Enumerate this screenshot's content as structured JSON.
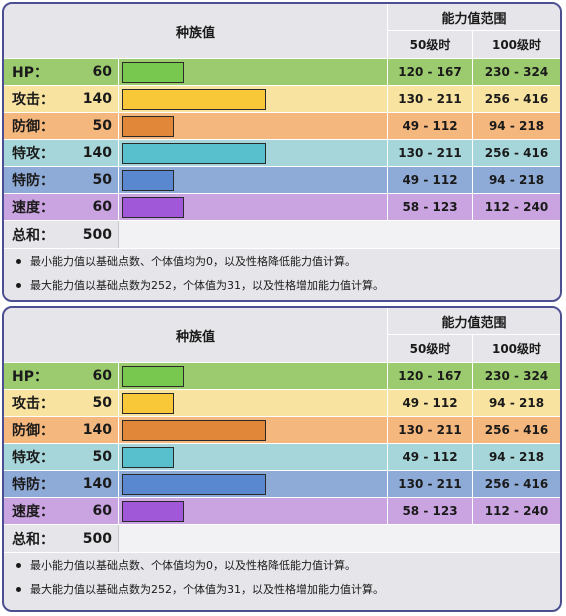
{
  "header": {
    "base_stats_label": "种族值",
    "stat_range_label": "能力值范围",
    "level50_label": "50级时",
    "level100_label": "100级时"
  },
  "colors": {
    "hp_row": "#9ccb6f",
    "hp_bar": "#78c850",
    "atk_row": "#f8e3a0",
    "atk_bar": "#f8c838",
    "def_row": "#f4b77d",
    "def_bar": "#e0873a",
    "spa_row": "#a7d6da",
    "spa_bar": "#58c0cc",
    "spd_row": "#8eaad6",
    "spd_bar": "#5a88d0",
    "spe_row": "#c9a4e0",
    "spe_bar": "#a058d8"
  },
  "max_base_stat": 255,
  "panels": [
    {
      "stats": [
        {
          "name": "HP：",
          "value": "60",
          "base": 60,
          "lv50": "120 - 167",
          "lv100": "230 - 324"
        },
        {
          "name": "攻击：",
          "value": "140",
          "base": 140,
          "lv50": "130 - 211",
          "lv100": "256 - 416"
        },
        {
          "name": "防御：",
          "value": "50",
          "base": 50,
          "lv50": "49 - 112",
          "lv100": "94 - 218"
        },
        {
          "name": "特攻：",
          "value": "140",
          "base": 140,
          "lv50": "130 - 211",
          "lv100": "256 - 416"
        },
        {
          "name": "特防：",
          "value": "50",
          "base": 50,
          "lv50": "49 - 112",
          "lv100": "94 - 218"
        },
        {
          "name": "速度：",
          "value": "60",
          "base": 60,
          "lv50": "58 - 123",
          "lv100": "112 - 240"
        }
      ],
      "total_label": "总和：",
      "total_value": "500",
      "notes": [
        "最小能力值以基础点数、个体值均为0，以及性格降低能力值计算。",
        "最大能力值以基础点数为252，个体值为31，以及性格增加能力值计算。"
      ]
    },
    {
      "stats": [
        {
          "name": "HP：",
          "value": "60",
          "base": 60,
          "lv50": "120 - 167",
          "lv100": "230 - 324"
        },
        {
          "name": "攻击：",
          "value": "50",
          "base": 50,
          "lv50": "49 - 112",
          "lv100": "94 - 218"
        },
        {
          "name": "防御：",
          "value": "140",
          "base": 140,
          "lv50": "130 - 211",
          "lv100": "256 - 416"
        },
        {
          "name": "特攻：",
          "value": "50",
          "base": 50,
          "lv50": "49 - 112",
          "lv100": "94 - 218"
        },
        {
          "name": "特防：",
          "value": "140",
          "base": 140,
          "lv50": "130 - 211",
          "lv100": "256 - 416"
        },
        {
          "name": "速度：",
          "value": "60",
          "base": 60,
          "lv50": "58 - 123",
          "lv100": "112 - 240"
        }
      ],
      "total_label": "总和：",
      "total_value": "500",
      "notes": [
        "最小能力值以基础点数、个体值均为0，以及性格降低能力值计算。",
        "最大能力值以基础点数为252，个体值为31，以及性格增加能力值计算。"
      ]
    }
  ]
}
